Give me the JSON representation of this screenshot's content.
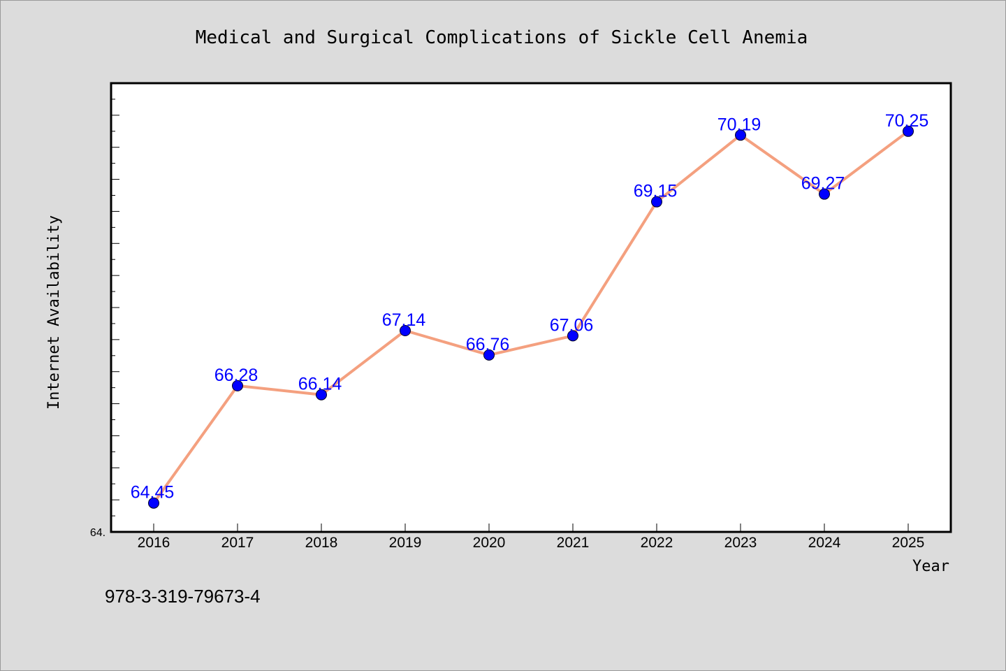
{
  "chart_data": {
    "type": "line",
    "title": "Medical and Surgical Complications of Sickle Cell Anemia",
    "xlabel": "Year",
    "ylabel": "Internet Availability",
    "categories": [
      "2016",
      "2017",
      "2018",
      "2019",
      "2020",
      "2021",
      "2022",
      "2023",
      "2024",
      "2025"
    ],
    "series": [
      {
        "values": [
          64.45,
          66.28,
          66.14,
          67.14,
          66.76,
          67.06,
          69.15,
          70.19,
          69.27,
          70.25
        ],
        "data_labels": [
          "64.45",
          "66.28",
          "66.14",
          "67.14",
          "66.76",
          "67.06",
          "69.15",
          "70.19",
          "69.27",
          "70.25"
        ]
      }
    ],
    "ylim": [
      64.0,
      71.0
    ],
    "y_tick_label": "64.",
    "grid": false,
    "line_color": "#f4a07f",
    "marker_color": "#0000ff",
    "label_color": "#0000ff"
  },
  "footer_text": "978-3-319-79673-4"
}
